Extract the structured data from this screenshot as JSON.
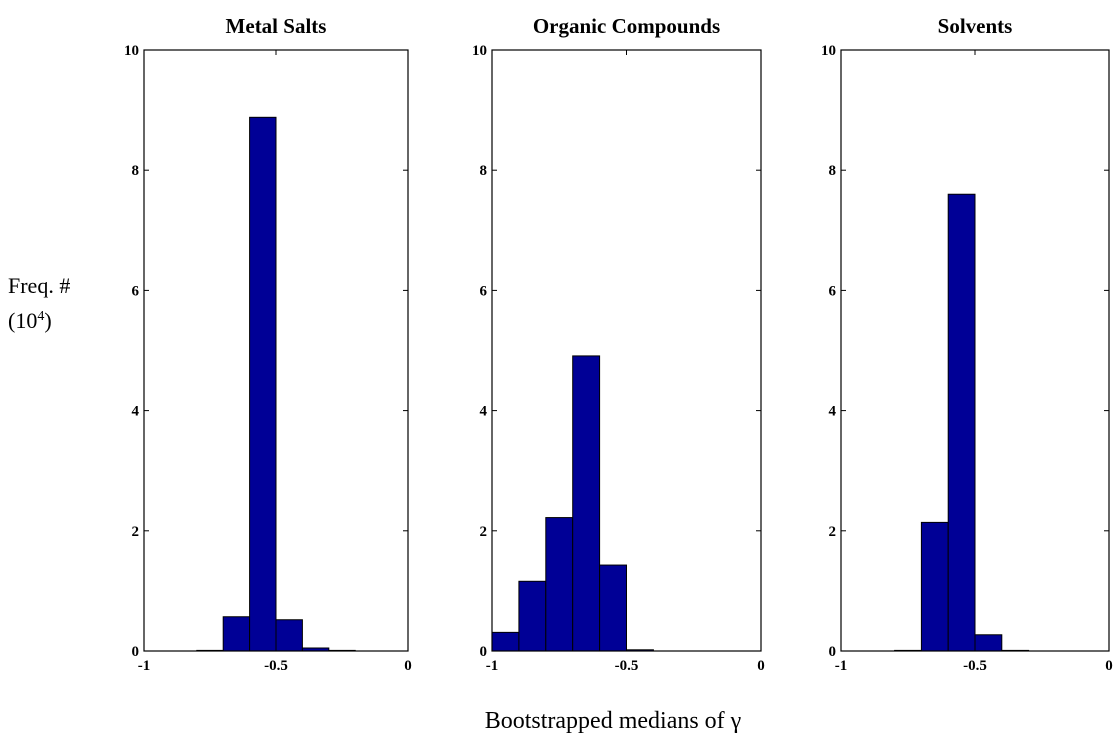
{
  "chart_data": [
    {
      "type": "bar",
      "title": "Metal Salts",
      "bin_edges": [
        -1.0,
        -0.9,
        -0.8,
        -0.7,
        -0.6,
        -0.5,
        -0.4,
        -0.3,
        -0.2,
        -0.1,
        0.0
      ],
      "values": [
        0,
        0,
        0.01,
        0.57,
        8.88,
        0.52,
        0.05,
        0.01,
        0,
        0
      ],
      "xlim": [
        -1,
        0
      ],
      "ylim": [
        0,
        10
      ],
      "xticks": [
        "-1",
        "-0.5",
        "0"
      ],
      "yticks": [
        "0",
        "2",
        "4",
        "6",
        "8",
        "10"
      ],
      "bar_color": "#000096"
    },
    {
      "type": "bar",
      "title": "Organic Compounds",
      "bin_edges": [
        -1.0,
        -0.9,
        -0.8,
        -0.7,
        -0.6,
        -0.5,
        -0.4,
        -0.3,
        -0.2,
        -0.1,
        0.0
      ],
      "values": [
        0.31,
        1.16,
        2.22,
        4.91,
        1.43,
        0.02,
        0,
        0,
        0,
        0
      ],
      "xlim": [
        -1,
        0
      ],
      "ylim": [
        0,
        10
      ],
      "xticks": [
        "-1",
        "-0.5",
        "0"
      ],
      "yticks": [
        "0",
        "2",
        "4",
        "6",
        "8",
        "10"
      ],
      "bar_color": "#000096"
    },
    {
      "type": "bar",
      "title": "Solvents",
      "bin_edges": [
        -1.0,
        -0.9,
        -0.8,
        -0.7,
        -0.6,
        -0.5,
        -0.4,
        -0.3,
        -0.2,
        -0.1,
        0.0
      ],
      "values": [
        0,
        0,
        0.01,
        2.14,
        7.6,
        0.27,
        0.01,
        0,
        0,
        0
      ],
      "xlim": [
        -1,
        0
      ],
      "ylim": [
        0,
        10
      ],
      "xticks": [
        "-1",
        "-0.5",
        "0"
      ],
      "yticks": [
        "0",
        "2",
        "4",
        "6",
        "8",
        "10"
      ],
      "bar_color": "#000096"
    }
  ],
  "ylabel_line1": "Freq. #",
  "ylabel_line2_base": "(10",
  "ylabel_line2_exp": "4",
  "ylabel_line2_end": ")",
  "xlabel": "Bootstrapped medians of γ"
}
